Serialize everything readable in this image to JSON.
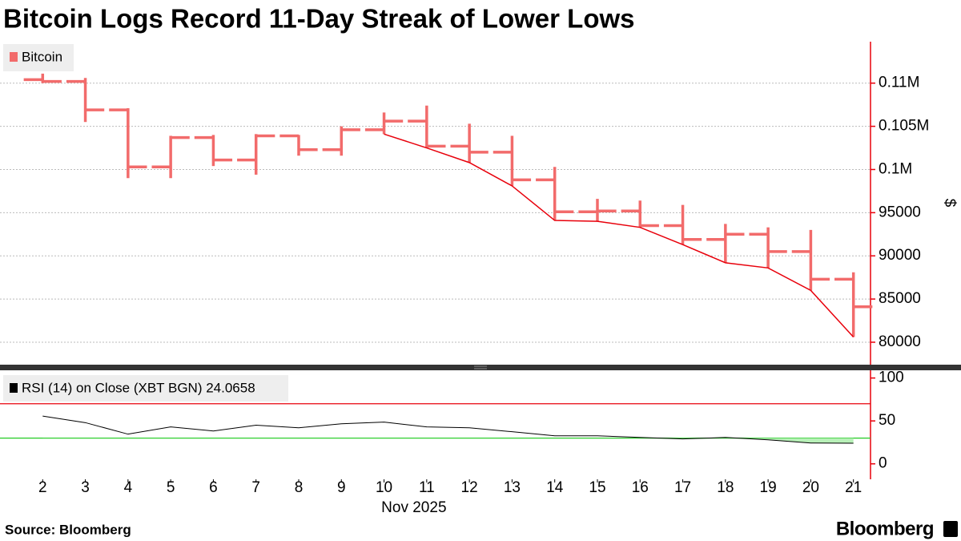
{
  "title": "Bitcoin Logs Record 11-Day Streak of Lower Lows",
  "source": "Source: Bloomberg",
  "brand": "Bloomberg",
  "chart_data": [
    {
      "type": "ohlc",
      "x": [
        2,
        3,
        4,
        5,
        6,
        7,
        8,
        9,
        10,
        11,
        12,
        13,
        14,
        15,
        16,
        17,
        18,
        19,
        20,
        21
      ],
      "series": [
        {
          "name": "Bitcoin",
          "color": "#f26b6b",
          "open": [
            110400,
            110200,
            106900,
            100300,
            103700,
            101100,
            103900,
            102300,
            104600,
            105600,
            102700,
            102000,
            98800,
            95100,
            95200,
            93500,
            91900,
            92500,
            90500,
            87300
          ],
          "high": [
            111100,
            110600,
            107100,
            103900,
            104000,
            104100,
            104000,
            105000,
            106600,
            107400,
            105300,
            103900,
            100300,
            96600,
            96400,
            95900,
            93700,
            93300,
            93000,
            88100
          ],
          "low": [
            110000,
            105500,
            99000,
            99000,
            100400,
            99400,
            101600,
            101600,
            104100,
            102500,
            100800,
            98100,
            94100,
            94000,
            93300,
            91300,
            89200,
            88600,
            86000,
            80600
          ],
          "close": [
            110200,
            106900,
            100300,
            103700,
            101100,
            103900,
            102300,
            104600,
            105600,
            102700,
            102000,
            98800,
            95100,
            95200,
            93500,
            91900,
            92500,
            90500,
            87300,
            84100
          ]
        }
      ],
      "trend_line": {
        "from": 10,
        "to": 21,
        "color": "#e8000b"
      },
      "ylabel": "$",
      "ylim": [
        77400,
        114800
      ],
      "yticks": [
        {
          "value": 80000,
          "label": "80000"
        },
        {
          "value": 85000,
          "label": "85000"
        },
        {
          "value": 90000,
          "label": "90000"
        },
        {
          "value": 95000,
          "label": "95000"
        },
        {
          "value": 100000,
          "label": "0.1M"
        },
        {
          "value": 105000,
          "label": "0.105M"
        },
        {
          "value": 110000,
          "label": "0.11M"
        }
      ],
      "xlim": [
        1,
        21.4
      ],
      "grid": true,
      "axis_color": "#e8000b"
    },
    {
      "type": "line",
      "x": [
        2,
        3,
        4,
        5,
        6,
        7,
        8,
        9,
        10,
        11,
        12,
        13,
        14,
        15,
        16,
        17,
        18,
        19,
        20,
        21
      ],
      "series": [
        {
          "name": "RSI (14)  on Close (XBT BGN) 24.0658",
          "color": "#000000",
          "values": [
            55.7,
            48,
            34.6,
            43,
            38.3,
            45,
            42,
            46.7,
            48.6,
            43,
            42,
            37.4,
            32.7,
            32.7,
            30.8,
            29,
            30.8,
            28,
            24.3,
            24.0658
          ]
        }
      ],
      "levels": [
        {
          "value": 70,
          "color": "#e8000b"
        },
        {
          "value": 30,
          "color": "#22cc22",
          "fill": "#b8f0b8"
        }
      ],
      "ylim": [
        -18,
        109
      ],
      "yticks": [
        0,
        50,
        100
      ],
      "xlim": [
        1,
        21.4
      ],
      "xticks": [
        2,
        3,
        4,
        5,
        6,
        7,
        8,
        9,
        10,
        11,
        12,
        13,
        14,
        15,
        16,
        17,
        18,
        19,
        20,
        21
      ],
      "xlabel": "Nov 2025",
      "axis_color": "#e8000b"
    }
  ]
}
